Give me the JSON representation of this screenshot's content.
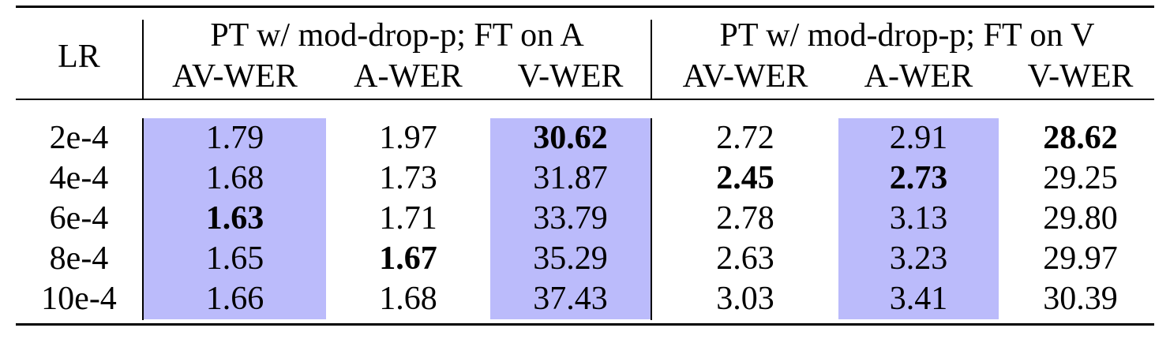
{
  "table": {
    "header": {
      "lr": "LR",
      "group_a": "PT w/ mod-drop-p; FT on A",
      "group_v": "PT w/ mod-drop-p; FT on V",
      "sub": [
        "AV-WER",
        "A-WER",
        "V-WER",
        "AV-WER",
        "A-WER",
        "V-WER"
      ]
    },
    "rows": [
      {
        "lr": "2e-4",
        "cells": [
          "1.79",
          "1.97",
          "30.62",
          "2.72",
          "2.91",
          "28.62"
        ],
        "bold": [
          false,
          false,
          true,
          false,
          false,
          true
        ]
      },
      {
        "lr": "4e-4",
        "cells": [
          "1.68",
          "1.73",
          "31.87",
          "2.45",
          "2.73",
          "29.25"
        ],
        "bold": [
          false,
          false,
          false,
          true,
          true,
          false
        ]
      },
      {
        "lr": "6e-4",
        "cells": [
          "1.63",
          "1.71",
          "33.79",
          "2.78",
          "3.13",
          "29.80"
        ],
        "bold": [
          true,
          false,
          false,
          false,
          false,
          false
        ]
      },
      {
        "lr": "8e-4",
        "cells": [
          "1.65",
          "1.67",
          "35.29",
          "2.63",
          "3.23",
          "29.97"
        ],
        "bold": [
          false,
          true,
          false,
          false,
          false,
          false
        ]
      },
      {
        "lr": "10e-4",
        "cells": [
          "1.66",
          "1.68",
          "37.43",
          "3.03",
          "3.41",
          "30.39"
        ],
        "bold": [
          false,
          false,
          false,
          false,
          false,
          false
        ]
      }
    ],
    "highlight_color": "#bbbbfb"
  }
}
